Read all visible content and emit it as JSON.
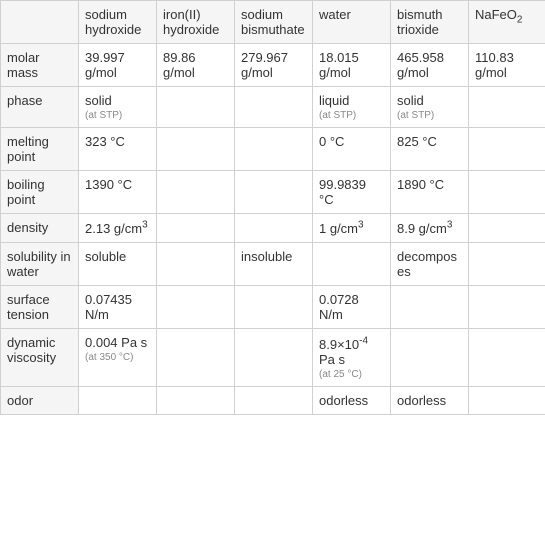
{
  "table": {
    "columns": [
      "",
      "sodium hydroxide",
      "iron(II) hydroxide",
      "sodium bismuthate",
      "water",
      "bismuth trioxide",
      "NaFeO₂"
    ],
    "rows": [
      {
        "header": "molar mass",
        "cells": [
          {
            "value": "39.997 g/mol"
          },
          {
            "value": "89.86 g/mol"
          },
          {
            "value": "279.967 g/mol"
          },
          {
            "value": "18.015 g/mol"
          },
          {
            "value": "465.958 g/mol"
          },
          {
            "value": "110.83 g/mol"
          }
        ]
      },
      {
        "header": "phase",
        "cells": [
          {
            "value": "solid",
            "note": "(at STP)"
          },
          {
            "value": ""
          },
          {
            "value": ""
          },
          {
            "value": "liquid",
            "note": "(at STP)"
          },
          {
            "value": "solid",
            "note": "(at STP)"
          },
          {
            "value": ""
          }
        ]
      },
      {
        "header": "melting point",
        "cells": [
          {
            "value": "323 °C"
          },
          {
            "value": ""
          },
          {
            "value": ""
          },
          {
            "value": "0 °C"
          },
          {
            "value": "825 °C"
          },
          {
            "value": ""
          }
        ]
      },
      {
        "header": "boiling point",
        "cells": [
          {
            "value": "1390 °C"
          },
          {
            "value": ""
          },
          {
            "value": ""
          },
          {
            "value": "99.9839 °C"
          },
          {
            "value": "1890 °C"
          },
          {
            "value": ""
          }
        ]
      },
      {
        "header": "density",
        "cells": [
          {
            "value": "2.13 g/cm³"
          },
          {
            "value": ""
          },
          {
            "value": ""
          },
          {
            "value": "1 g/cm³"
          },
          {
            "value": "8.9 g/cm³"
          },
          {
            "value": ""
          }
        ]
      },
      {
        "header": "solubility in water",
        "cells": [
          {
            "value": "soluble"
          },
          {
            "value": ""
          },
          {
            "value": "insoluble"
          },
          {
            "value": ""
          },
          {
            "value": "decomposes"
          },
          {
            "value": ""
          }
        ]
      },
      {
        "header": "surface tension",
        "cells": [
          {
            "value": "0.07435 N/m"
          },
          {
            "value": ""
          },
          {
            "value": ""
          },
          {
            "value": "0.0728 N/m"
          },
          {
            "value": ""
          },
          {
            "value": ""
          }
        ]
      },
      {
        "header": "dynamic viscosity",
        "cells": [
          {
            "value": "0.004 Pa s",
            "note": "(at 350 °C)"
          },
          {
            "value": ""
          },
          {
            "value": ""
          },
          {
            "value": "8.9×10⁻⁴ Pa s",
            "note": "(at 25 °C)"
          },
          {
            "value": ""
          },
          {
            "value": ""
          }
        ]
      },
      {
        "header": "odor",
        "cells": [
          {
            "value": ""
          },
          {
            "value": ""
          },
          {
            "value": ""
          },
          {
            "value": "odorless"
          },
          {
            "value": "odorless"
          },
          {
            "value": ""
          }
        ]
      }
    ],
    "styling": {
      "border_color": "#d0d0d0",
      "header_bg": "#f5f5f5",
      "cell_bg": "#ffffff",
      "text_color": "#333333",
      "note_color": "#888888",
      "font_size": 13,
      "note_font_size": 10
    }
  }
}
